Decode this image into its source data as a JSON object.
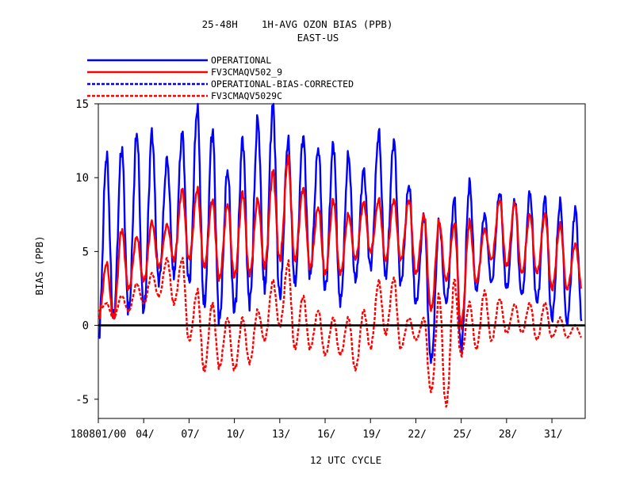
{
  "chart_data": {
    "type": "line",
    "title": "25-48H    1H-AVG OZON BIAS (PPB)",
    "subtitle": "EAST-US",
    "xlabel": "12 UTC CYCLE",
    "ylabel": "BIAS (PPB)",
    "ylim": [
      -6.3,
      15
    ],
    "xlim": [
      1,
      33.2
    ],
    "yticks": [
      -5,
      0,
      5,
      10,
      15
    ],
    "ytick_labels": [
      "-5",
      "0",
      "5",
      "10",
      "15"
    ],
    "xticks": [
      1,
      4,
      7,
      10,
      13,
      16,
      19,
      22,
      25,
      28,
      31
    ],
    "xtick_labels": [
      "180801/00",
      "04/",
      "07/",
      "10/",
      "13/",
      "16/",
      "19/",
      "22/",
      "25/",
      "28/",
      "31/"
    ],
    "zero_line": true,
    "grid": false,
    "legend_position": "top-left, above plot",
    "series": [
      {
        "name": "OPERATIONAL",
        "color": "#0000ff",
        "dash": "solid",
        "daily_peaks": [
          11.5,
          12,
          13,
          13,
          11.2,
          13,
          14.7,
          13.2,
          10.5,
          12.6,
          13.9,
          14.9,
          12.5,
          12.8,
          12,
          12.3,
          11.5,
          10.5,
          13,
          12.5,
          9.5,
          7.5,
          7,
          8.5,
          9.6,
          7.5,
          9,
          8.5,
          9,
          8.6,
          8.3,
          7.9
        ],
        "daily_troughs": [
          -0.8,
          0.5,
          1,
          1,
          3,
          3.5,
          3,
          1.5,
          0.5,
          1,
          1.5,
          2.5,
          2,
          3,
          3.5,
          2.5,
          1.5,
          3,
          4,
          3.5,
          3,
          1.5,
          -2.5,
          1.5,
          -1.5,
          2.5,
          3,
          2.5,
          2,
          1.5,
          0.5,
          0.3
        ]
      },
      {
        "name": "FV3CMAQV502_9",
        "color": "#ff0000",
        "dash": "solid",
        "daily_peaks": [
          4.2,
          6.5,
          6,
          7,
          6.8,
          9.2,
          9.2,
          8.5,
          8.2,
          9,
          8.5,
          10.4,
          11.3,
          9.3,
          8,
          8.5,
          7.5,
          8.3,
          8.5,
          8.5,
          8.5,
          7.5,
          7,
          6.8,
          7,
          6.5,
          8.5,
          8.3,
          7.5,
          7.5,
          6.8,
          5.5
        ],
        "daily_troughs": [
          0.5,
          0.5,
          2.5,
          3,
          4,
          4.5,
          4.5,
          4,
          3.2,
          3.3,
          3.5,
          4,
          4.5,
          4.5,
          4,
          3.5,
          3.5,
          4.5,
          5,
          4.5,
          4.5,
          3.5,
          1,
          3,
          0,
          3,
          4.5,
          4,
          3.5,
          3.5,
          2.5,
          2.5
        ]
      },
      {
        "name": "OPERATIONAL-BIAS-CORRECTED",
        "color": "#0000ff",
        "dash": "dashed",
        "daily_peaks": [],
        "daily_troughs": []
      },
      {
        "name": "FV3CMAQV5029C",
        "color": "#ff0000",
        "dash": "dashed",
        "daily_peaks": [
          1.5,
          2,
          2.8,
          3.5,
          4.5,
          4.5,
          2.3,
          1.5,
          0.5,
          0.5,
          1,
          3,
          4.2,
          2,
          1,
          0.5,
          0.5,
          1,
          3,
          3.2,
          0.5,
          0.5,
          2,
          3,
          1.5,
          2.3,
          1.8,
          1.4,
          1.5,
          1.5,
          0.5,
          0
        ],
        "daily_troughs": [
          1,
          0.5,
          1,
          1.5,
          2,
          1.5,
          -1,
          -3,
          -2.8,
          -3,
          -2.5,
          -1,
          0,
          -1.5,
          -1.5,
          -2,
          -2,
          -3,
          -1.5,
          -0.5,
          -1.5,
          -1,
          -4.5,
          -5.5,
          -2,
          -1.5,
          -1,
          -0.5,
          -0.5,
          -1,
          -0.8,
          -0.8
        ]
      }
    ]
  }
}
